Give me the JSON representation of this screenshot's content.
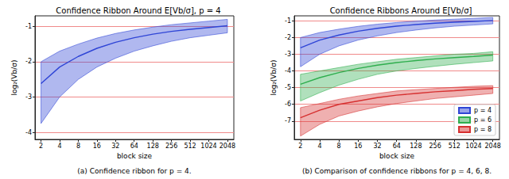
{
  "chart_data": [
    {
      "type": "line",
      "title": "Confidence Ribbon Around E[Vb/σ], p = 4",
      "caption": "(a) Confidence ribbon for p = 4.",
      "x_label": "block size",
      "y_label": "log₂(Vb/σ)",
      "log": "x",
      "grid": true,
      "x": [
        2,
        4,
        8,
        16,
        32,
        64,
        128,
        256,
        512,
        1024,
        2048
      ],
      "xlim": [
        1.6,
        2600
      ],
      "xticks": [
        2,
        4,
        8,
        16,
        32,
        64,
        128,
        256,
        512,
        1024,
        2048
      ],
      "ylim": [
        -4.2,
        -0.7
      ],
      "yticks": [
        -4,
        -3,
        -2,
        -1
      ],
      "series": [
        {
          "color": "#2f45d6",
          "values": [
            -2.62,
            -2.15,
            -1.85,
            -1.62,
            -1.45,
            -1.32,
            -1.22,
            -1.14,
            -1.08,
            -1.03,
            -0.98
          ],
          "lower": [
            -3.75,
            -3.0,
            -2.5,
            -2.15,
            -1.9,
            -1.7,
            -1.55,
            -1.42,
            -1.32,
            -1.25,
            -1.18
          ],
          "upper": [
            -2.0,
            -1.7,
            -1.5,
            -1.33,
            -1.2,
            -1.1,
            -1.02,
            -0.95,
            -0.9,
            -0.85,
            -0.8
          ]
        }
      ]
    },
    {
      "type": "line",
      "title": "Confidence Ribbons Around E[Vb/σ]",
      "caption": "(b) Comparison of confidence ribbons for p = 4, 6, 8.",
      "x_label": "block size",
      "y_label": "log₂(Vb/σ)",
      "log": "x",
      "grid": true,
      "legend": "lower right",
      "x": [
        2,
        4,
        8,
        16,
        32,
        64,
        128,
        256,
        512,
        1024,
        2048
      ],
      "xlim": [
        1.6,
        2600
      ],
      "xticks": [
        2,
        4,
        8,
        16,
        32,
        64,
        128,
        256,
        512,
        1024,
        2048
      ],
      "ylim": [
        -8.1,
        -0.7
      ],
      "yticks": [
        -7,
        -6,
        -5,
        -4,
        -3,
        -2,
        -1
      ],
      "series": [
        {
          "name": "p = 4",
          "color": "#2f45d6",
          "values": [
            -2.62,
            -2.15,
            -1.85,
            -1.62,
            -1.45,
            -1.32,
            -1.22,
            -1.14,
            -1.08,
            -1.03,
            -0.98
          ],
          "lower": [
            -3.75,
            -3.0,
            -2.5,
            -2.15,
            -1.9,
            -1.7,
            -1.55,
            -1.42,
            -1.32,
            -1.25,
            -1.18
          ],
          "upper": [
            -2.0,
            -1.7,
            -1.5,
            -1.33,
            -1.2,
            -1.1,
            -1.02,
            -0.95,
            -0.9,
            -0.85,
            -0.8
          ]
        },
        {
          "name": "p = 6",
          "color": "#2fae4e",
          "values": [
            -4.8,
            -4.4,
            -4.1,
            -3.85,
            -3.65,
            -3.5,
            -3.38,
            -3.28,
            -3.2,
            -3.13,
            -3.05
          ],
          "lower": [
            -5.8,
            -5.3,
            -4.85,
            -4.5,
            -4.2,
            -4.0,
            -3.85,
            -3.72,
            -3.6,
            -3.5,
            -3.4
          ],
          "upper": [
            -4.2,
            -4.0,
            -3.8,
            -3.6,
            -3.45,
            -3.3,
            -3.2,
            -3.1,
            -3.0,
            -2.95,
            -2.85
          ]
        },
        {
          "name": "p = 8",
          "color": "#d63030",
          "values": [
            -6.8,
            -6.35,
            -6.0,
            -5.8,
            -5.6,
            -5.45,
            -5.35,
            -5.25,
            -5.18,
            -5.1,
            -5.05
          ],
          "lower": [
            -7.9,
            -7.2,
            -6.7,
            -6.4,
            -6.15,
            -5.95,
            -5.8,
            -5.65,
            -5.55,
            -5.45,
            -5.35
          ],
          "upper": [
            -6.2,
            -5.95,
            -5.7,
            -5.5,
            -5.35,
            -5.2,
            -5.12,
            -5.05,
            -4.98,
            -4.92,
            -4.88
          ]
        }
      ]
    }
  ]
}
